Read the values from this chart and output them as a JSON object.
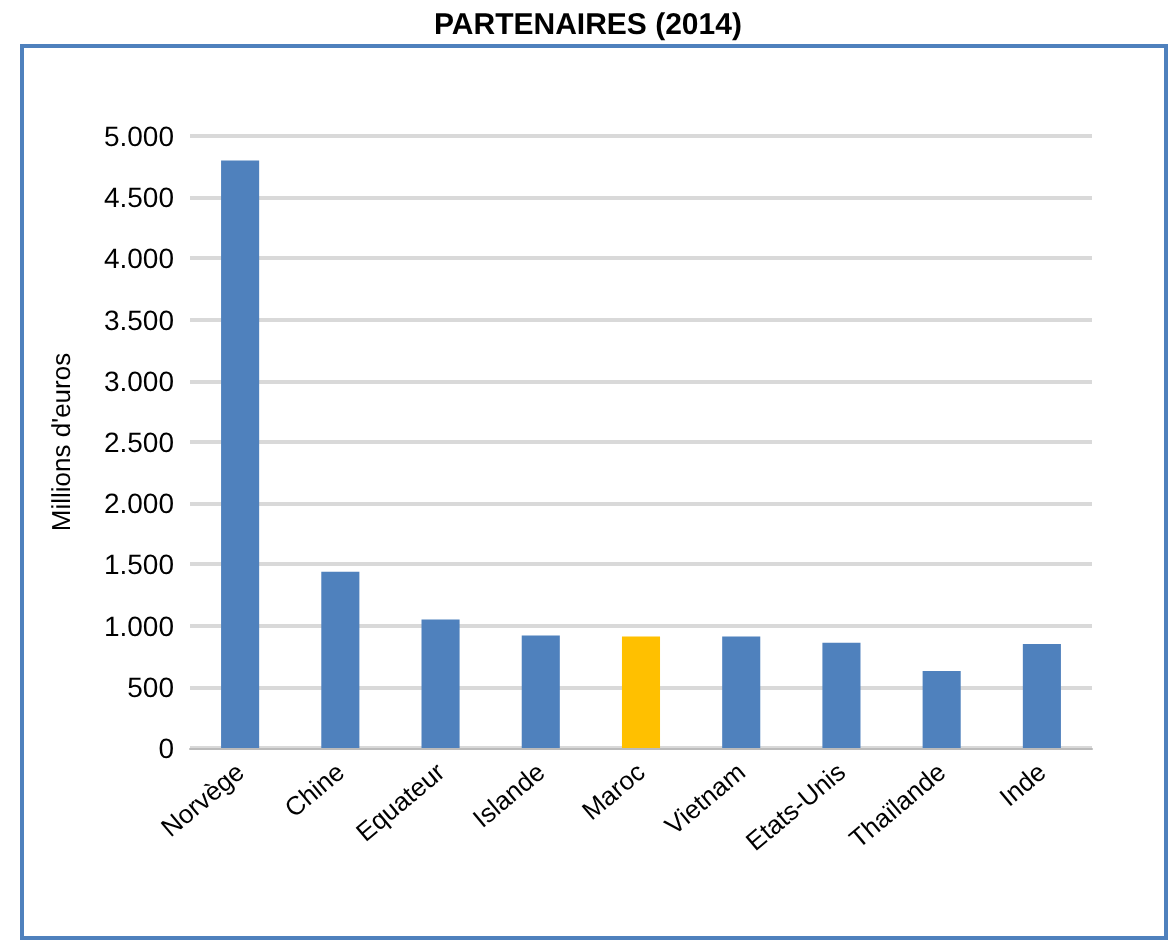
{
  "chart_data": {
    "type": "bar",
    "title": "PARTENAIRES (2014)",
    "ylabel": "Millions d'euros",
    "categories": [
      "Norvège",
      "Chine",
      "Equateur",
      "Islande",
      "Maroc",
      "Vietnam",
      "Etats-Unis",
      "Thaïlande",
      "Inde"
    ],
    "values": [
      4800,
      1440,
      1050,
      920,
      910,
      910,
      860,
      630,
      850
    ],
    "colors": [
      "#4f81bd",
      "#4f81bd",
      "#4f81bd",
      "#4f81bd",
      "#ffc000",
      "#4f81bd",
      "#4f81bd",
      "#4f81bd",
      "#4f81bd"
    ],
    "ylim": [
      0,
      5000
    ],
    "yticks": [
      {
        "value": 0,
        "label": "0"
      },
      {
        "value": 500,
        "label": "500"
      },
      {
        "value": 1000,
        "label": "1.000"
      },
      {
        "value": 1500,
        "label": "1.500"
      },
      {
        "value": 2000,
        "label": "2.000"
      },
      {
        "value": 2500,
        "label": "2.500"
      },
      {
        "value": 3000,
        "label": "3.000"
      },
      {
        "value": 3500,
        "label": "3.500"
      },
      {
        "value": 4000,
        "label": "4.000"
      },
      {
        "value": 4500,
        "label": "4.500"
      },
      {
        "value": 5000,
        "label": "5.000"
      }
    ],
    "grid": true
  }
}
